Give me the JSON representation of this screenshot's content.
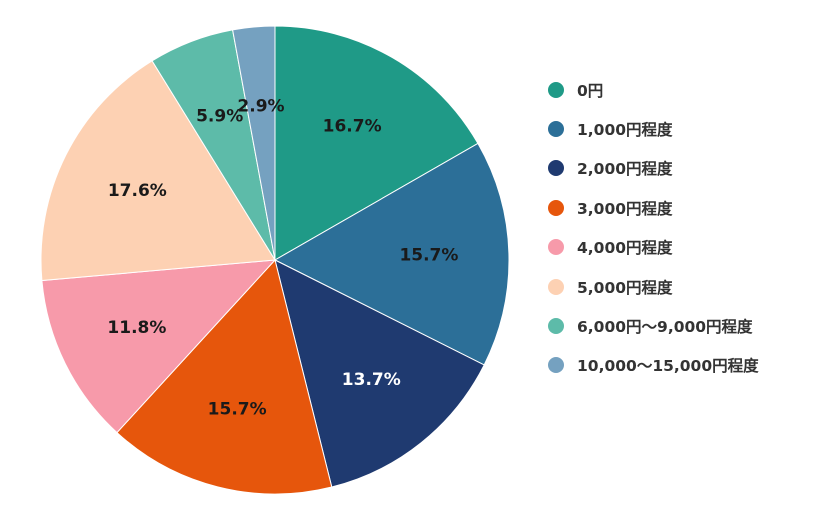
{
  "chart_data": {
    "type": "pie",
    "title": "",
    "legend_position": "right",
    "categories": [
      "0円",
      "1,000円程度",
      "2,000円程度",
      "3,000円程度",
      "4,000円程度",
      "5,000円程度",
      "6,000円〜9,000円程度",
      "10,000〜15,000円程度"
    ],
    "values": [
      16.7,
      15.7,
      13.7,
      15.7,
      11.8,
      17.6,
      5.9,
      2.9
    ],
    "data_labels": [
      "16.7%",
      "15.7%",
      "13.7%",
      "15.7%",
      "11.8%",
      "17.6%",
      "5.9%",
      "2.9%"
    ],
    "colors": [
      "#1f9a87",
      "#2c6f98",
      "#1f3a70",
      "#e6560c",
      "#f79aaa",
      "#fdd1b3",
      "#5dbba9",
      "#75a1c0"
    ],
    "label_colors": [
      "#1a1a1a",
      "#1a1a1a",
      "#ffffff",
      "#1a1a1a",
      "#1a1a1a",
      "#1a1a1a",
      "#1a1a1a",
      "#1a1a1a"
    ]
  }
}
